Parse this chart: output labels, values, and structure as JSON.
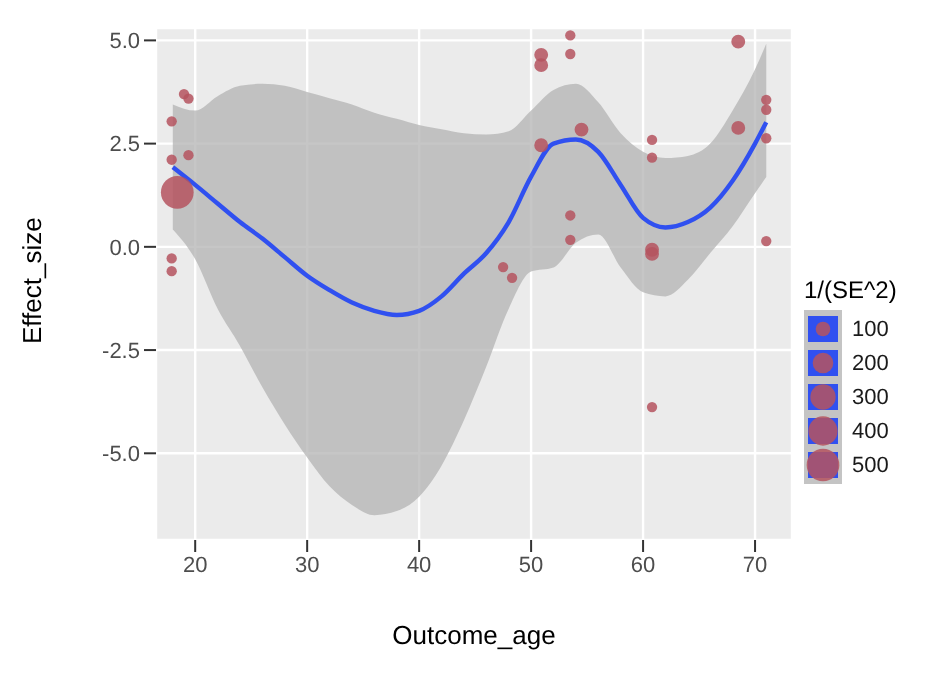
{
  "chart_data": {
    "type": "bubble",
    "xlabel": "Outcome_age",
    "ylabel": "Effect_size",
    "legend_title": "1/(SE^2)",
    "grid": true,
    "xlim": [
      16.5,
      73.3
    ],
    "ylim": [
      -7.1,
      5.3
    ],
    "xticks": [
      20,
      30,
      40,
      50,
      60,
      70
    ],
    "yticks": [
      {
        "value": -5,
        "label": "-5.0"
      },
      {
        "value": -2.5,
        "label": "-2.5"
      },
      {
        "value": 0,
        "label": "0.0"
      },
      {
        "value": 2.5,
        "label": "2.5"
      },
      {
        "value": 5,
        "label": "5.0"
      }
    ],
    "size_legend": [
      100,
      200,
      300,
      400,
      500
    ],
    "series": [
      {
        "color": "#b5535f",
        "x": [
          19.0,
          19.4,
          17.9,
          17.9,
          19.4,
          18.4,
          17.9,
          17.9,
          53.5,
          50.9,
          50.9,
          53.5,
          68.5,
          71.0,
          71.0,
          68.5,
          71.0,
          54.5,
          50.9,
          60.8,
          60.8,
          53.5,
          53.5,
          60.8,
          60.8,
          71.0,
          47.5,
          48.3,
          60.8
        ],
        "values": [
          3.7,
          3.59,
          3.04,
          2.11,
          2.22,
          1.32,
          -0.28,
          -0.59,
          5.12,
          4.65,
          4.4,
          4.67,
          4.97,
          3.56,
          3.32,
          2.88,
          2.63,
          2.84,
          2.46,
          2.59,
          2.16,
          0.76,
          0.17,
          -0.07,
          -0.17,
          0.14,
          -0.49,
          -0.75,
          -3.88
        ],
        "sizes": [
          50,
          50,
          50,
          50,
          50,
          500,
          50,
          50,
          50,
          90,
          90,
          50,
          90,
          50,
          50,
          90,
          50,
          90,
          90,
          50,
          50,
          50,
          50,
          90,
          90,
          50,
          50,
          50,
          50
        ]
      },
      {
        "type": "line",
        "color": "#3050f0",
        "x": [
          18,
          20,
          22,
          24,
          26,
          28,
          30,
          32,
          34,
          36,
          38,
          40,
          42,
          44,
          46,
          48,
          50,
          52,
          54,
          56,
          58,
          60,
          62,
          64,
          66,
          68,
          70,
          71
        ],
        "values": [
          1.93,
          1.5,
          1.05,
          0.6,
          0.2,
          -0.25,
          -0.7,
          -1.05,
          -1.35,
          -1.55,
          -1.65,
          -1.55,
          -1.2,
          -0.65,
          -0.15,
          0.6,
          1.7,
          2.5,
          2.6,
          2.3,
          1.5,
          0.7,
          0.47,
          0.6,
          0.95,
          1.6,
          2.5,
          3.02
        ],
        "upper": [
          3.45,
          3.3,
          3.65,
          3.9,
          3.95,
          3.9,
          3.75,
          3.6,
          3.45,
          3.25,
          3.1,
          2.95,
          2.85,
          2.75,
          2.72,
          2.8,
          3.3,
          3.8,
          3.95,
          3.5,
          2.75,
          2.3,
          2.15,
          2.2,
          2.5,
          3.3,
          4.3,
          4.92
        ],
        "lower": [
          0.42,
          -0.3,
          -1.5,
          -2.4,
          -3.4,
          -4.3,
          -5.1,
          -5.8,
          -6.25,
          -6.5,
          -6.4,
          -6.05,
          -5.3,
          -4.2,
          -2.9,
          -1.5,
          -0.6,
          -0.5,
          0.1,
          0.3,
          -0.5,
          -1.1,
          -1.2,
          -0.8,
          -0.15,
          0.5,
          1.3,
          1.69
        ]
      }
    ]
  }
}
